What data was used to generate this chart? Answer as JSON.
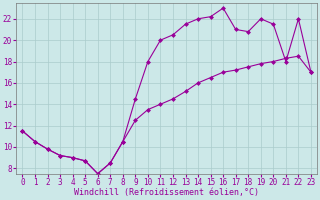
{
  "xlabel": "Windchill (Refroidissement éolien,°C)",
  "background_color": "#cce8e8",
  "line_color": "#990099",
  "grid_color": "#aacccc",
  "xlim": [
    -0.5,
    23.5
  ],
  "ylim": [
    7.5,
    23.5
  ],
  "xticks": [
    0,
    1,
    2,
    3,
    4,
    5,
    6,
    7,
    8,
    9,
    10,
    11,
    12,
    13,
    14,
    15,
    16,
    17,
    18,
    19,
    20,
    21,
    22,
    23
  ],
  "yticks": [
    8,
    10,
    12,
    14,
    16,
    18,
    20,
    22
  ],
  "upper_x": [
    0,
    1,
    2,
    3,
    4,
    5,
    6,
    7,
    8,
    9,
    10,
    11,
    12,
    13,
    14,
    15,
    16,
    17,
    18,
    19,
    20,
    21,
    22,
    23
  ],
  "upper_y": [
    11.5,
    10.5,
    9.8,
    9.2,
    9.0,
    8.7,
    7.5,
    8.5,
    10.5,
    14.5,
    18.0,
    20.0,
    20.5,
    21.5,
    22.0,
    22.2,
    23.0,
    21.0,
    20.8,
    22.0,
    21.5,
    18.0,
    22.0,
    17.0
  ],
  "lower_x": [
    0,
    1,
    2,
    3,
    4,
    5,
    6,
    7,
    8,
    9,
    10,
    11,
    12,
    13,
    14,
    15,
    16,
    17,
    18,
    19,
    20,
    21,
    22,
    23
  ],
  "lower_y": [
    11.5,
    10.5,
    9.8,
    9.2,
    9.0,
    8.7,
    7.5,
    8.5,
    10.5,
    12.5,
    13.5,
    14.0,
    14.5,
    15.2,
    16.0,
    16.5,
    17.0,
    17.2,
    17.5,
    17.8,
    18.0,
    18.3,
    18.5,
    17.0
  ],
  "marker_size": 2.5,
  "line_width": 0.8,
  "tick_fontsize": 5.5,
  "xlabel_fontsize": 6.0
}
